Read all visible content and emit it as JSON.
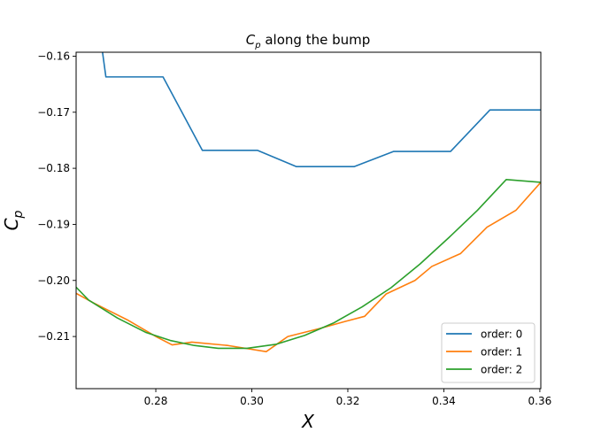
{
  "chart_data": {
    "type": "line",
    "title_main": "C",
    "title_sub": "p",
    "title_rest": " along the bump",
    "xlabel": "X",
    "ylabel_main": "C",
    "ylabel_sub": "p",
    "xlim": [
      0.2634,
      0.3602
    ],
    "ylim": [
      -0.2193,
      -0.1593
    ],
    "x_ticks": [
      {
        "value": 0.28,
        "label": "0.28"
      },
      {
        "value": 0.3,
        "label": "0.30"
      },
      {
        "value": 0.32,
        "label": "0.32"
      },
      {
        "value": 0.34,
        "label": "0.34"
      },
      {
        "value": 0.36,
        "label": "0.36"
      }
    ],
    "y_ticks": [
      {
        "value": -0.16,
        "label": "−0.16"
      },
      {
        "value": -0.17,
        "label": "−0.17"
      },
      {
        "value": -0.18,
        "label": "−0.18"
      },
      {
        "value": -0.19,
        "label": "−0.19"
      },
      {
        "value": -0.2,
        "label": "−0.20"
      },
      {
        "value": -0.21,
        "label": "−0.21"
      }
    ],
    "grid": false,
    "legend_position": "lower-right",
    "series": [
      {
        "name": "order: 0",
        "color": "#1f77b4",
        "points": [
          [
            0.2634,
            -0.155
          ],
          [
            0.2689,
            -0.1593
          ],
          [
            0.2696,
            -0.1637
          ],
          [
            0.2815,
            -0.1637
          ],
          [
            0.2897,
            -0.1768
          ],
          [
            0.3012,
            -0.1768
          ],
          [
            0.3093,
            -0.1797
          ],
          [
            0.3213,
            -0.1797
          ],
          [
            0.3295,
            -0.177
          ],
          [
            0.3414,
            -0.177
          ],
          [
            0.3496,
            -0.1696
          ],
          [
            0.3602,
            -0.1696
          ]
        ]
      },
      {
        "name": "order: 1",
        "color": "#ff7f0e",
        "points": [
          [
            0.2634,
            -0.2023
          ],
          [
            0.267,
            -0.204
          ],
          [
            0.274,
            -0.207
          ],
          [
            0.28,
            -0.21
          ],
          [
            0.2834,
            -0.2115
          ],
          [
            0.2875,
            -0.211
          ],
          [
            0.295,
            -0.2116
          ],
          [
            0.303,
            -0.2127
          ],
          [
            0.3075,
            -0.21
          ],
          [
            0.314,
            -0.2086
          ],
          [
            0.3195,
            -0.2073
          ],
          [
            0.3235,
            -0.2064
          ],
          [
            0.328,
            -0.2024
          ],
          [
            0.334,
            -0.2
          ],
          [
            0.3375,
            -0.1975
          ],
          [
            0.3435,
            -0.1952
          ],
          [
            0.349,
            -0.1905
          ],
          [
            0.355,
            -0.1875
          ],
          [
            0.3602,
            -0.1825
          ]
        ]
      },
      {
        "name": "order: 2",
        "color": "#2ca02c",
        "points": [
          [
            0.2634,
            -0.2012
          ],
          [
            0.266,
            -0.2035
          ],
          [
            0.272,
            -0.2067
          ],
          [
            0.278,
            -0.2093
          ],
          [
            0.283,
            -0.2107
          ],
          [
            0.288,
            -0.2116
          ],
          [
            0.293,
            -0.2121
          ],
          [
            0.299,
            -0.2121
          ],
          [
            0.305,
            -0.2114
          ],
          [
            0.311,
            -0.2098
          ],
          [
            0.317,
            -0.2076
          ],
          [
            0.323,
            -0.2047
          ],
          [
            0.329,
            -0.2013
          ],
          [
            0.335,
            -0.1971
          ],
          [
            0.341,
            -0.1924
          ],
          [
            0.347,
            -0.1875
          ],
          [
            0.353,
            -0.182
          ],
          [
            0.3602,
            -0.1825
          ]
        ]
      }
    ]
  }
}
